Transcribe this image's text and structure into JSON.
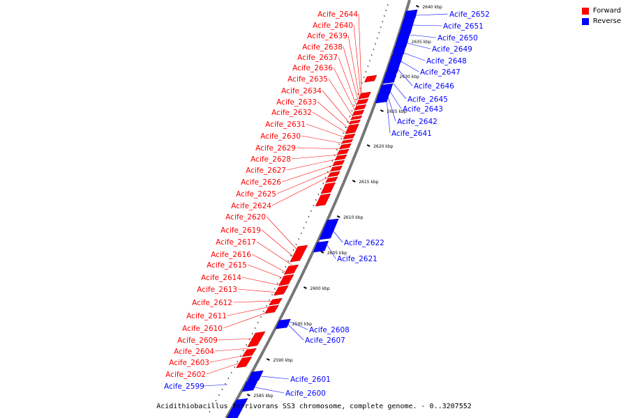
{
  "legend": {
    "forward": {
      "label": "Forward",
      "color": "#ff0000"
    },
    "reverse": {
      "label": "Reverse",
      "color": "#0000ff"
    }
  },
  "caption": "Acidithiobacillus ferrivorans SS3 chromosome, complete genome. - 0..3207552",
  "scale_labels": [
    "2640 kbp",
    "2635 kbp",
    "2630 kbp",
    "2625 kbp",
    "2620 kbp",
    "2615 kbp",
    "2610 kbp",
    "2605 kbp",
    "2600 kbp",
    "2595 kbp",
    "2590 kbp",
    "2585 kbp"
  ],
  "forward_genes": [
    "Acife_2644",
    "Acife_2640",
    "Acife_2639",
    "Acife_2638",
    "Acife_2637",
    "Acife_2636",
    "Acife_2635",
    "Acife_2634",
    "Acife_2633",
    "Acife_2632",
    "Acife_2631",
    "Acife_2630",
    "Acife_2629",
    "Acife_2628",
    "Acife_2627",
    "Acife_2626",
    "Acife_2625",
    "Acife_2624",
    "Acife_2620",
    "Acife_2619",
    "Acife_2617",
    "Acife_2616",
    "Acife_2615",
    "Acife_2614",
    "Acife_2613",
    "Acife_2612",
    "Acife_2611",
    "Acife_2610",
    "Acife_2609",
    "Acife_2604",
    "Acife_2603",
    "Acife_2602"
  ],
  "reverse_genes": [
    "Acife_2652",
    "Acife_2651",
    "Acife_2650",
    "Acife_2649",
    "Acife_2648",
    "Acife_2647",
    "Acife_2646",
    "Acife_2645",
    "Acife_2643",
    "Acife_2642",
    "Acife_2641",
    "Acife_2622",
    "Acife_2621",
    "Acife_2608",
    "Acife_2607",
    "Acife_2601",
    "Acife_2600",
    "Acife_2599"
  ]
}
